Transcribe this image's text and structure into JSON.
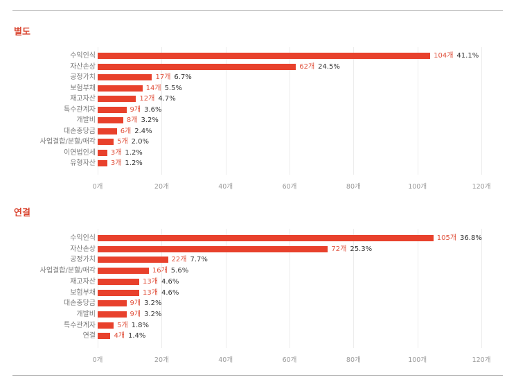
{
  "chart_data": [
    {
      "type": "bar",
      "orientation": "horizontal",
      "title": "별도",
      "categories": [
        "수익인식",
        "자산손상",
        "공정가치",
        "보험부채",
        "재고자산",
        "특수관계자",
        "개발비",
        "대손충당금",
        "사업결합/분할/매각",
        "이연법인세",
        "유형자산"
      ],
      "values": [
        104,
        62,
        17,
        14,
        12,
        9,
        8,
        6,
        5,
        3,
        3
      ],
      "percentages": [
        "41.1%",
        "24.5%",
        "6.7%",
        "5.5%",
        "4.7%",
        "3.6%",
        "3.2%",
        "2.4%",
        "2.0%",
        "1.2%",
        "1.2%"
      ],
      "count_labels": [
        "104개",
        "62개",
        "17개",
        "14개",
        "12개",
        "9개",
        "8개",
        "6개",
        "5개",
        "3개",
        "3개"
      ],
      "xlabel": "",
      "ylabel": "",
      "xlim": [
        0,
        120
      ],
      "x_ticks": [
        "0개",
        "20개",
        "40개",
        "60개",
        "80개",
        "100개",
        "120개"
      ],
      "grid": true,
      "bar_color": "#e8412c"
    },
    {
      "type": "bar",
      "orientation": "horizontal",
      "title": "연결",
      "categories": [
        "수익인식",
        "자산손상",
        "공정가치",
        "사업결합/분할/매각",
        "재고자산",
        "보험부채",
        "대손충당금",
        "개발비",
        "특수관계자",
        "연결"
      ],
      "values": [
        105,
        72,
        22,
        16,
        13,
        13,
        9,
        9,
        5,
        4
      ],
      "percentages": [
        "36.8%",
        "25.3%",
        "7.7%",
        "5.6%",
        "4.6%",
        "4.6%",
        "3.2%",
        "3.2%",
        "1.8%",
        "1.4%"
      ],
      "count_labels": [
        "105개",
        "72개",
        "22개",
        "16개",
        "13개",
        "13개",
        "9개",
        "9개",
        "5개",
        "4개"
      ],
      "xlabel": "",
      "ylabel": "",
      "xlim": [
        0,
        120
      ],
      "x_ticks": [
        "0개",
        "20개",
        "40개",
        "60개",
        "80개",
        "100개",
        "120개"
      ],
      "grid": true,
      "bar_color": "#e8412c"
    }
  ],
  "colors": {
    "accent": "#e8412c",
    "title": "#d9442f",
    "count_text": "#e0503b",
    "pct_text": "#333333",
    "category_text": "#7a7a7a",
    "tick_text": "#9a9a9a"
  }
}
